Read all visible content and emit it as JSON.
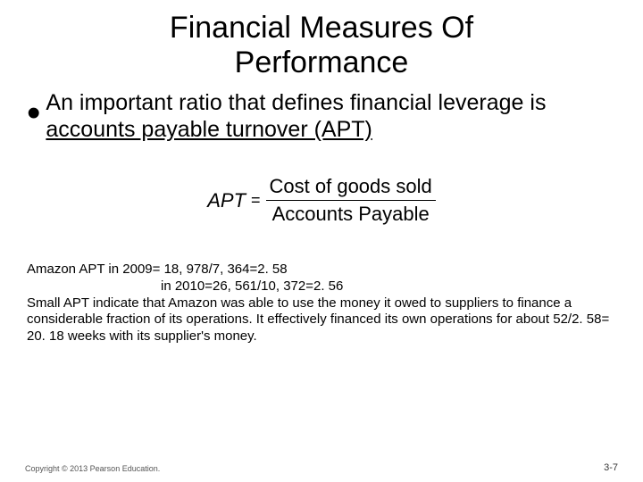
{
  "title_line1": "Financial Measures Of",
  "title_line2": "Performance",
  "bullet_part1": "An important ratio that defines financial leverage is ",
  "bullet_underlined": "accounts payable turnover (APT)",
  "formula": {
    "lhs": "APT",
    "eq": "=",
    "numerator": "Cost of goods sold",
    "denominator": "Accounts Payable"
  },
  "notes": {
    "line1": "Amazon APT in 2009= 18, 978/7, 364=2. 58",
    "line2": "in 2010=26, 561/10, 372=2. 56",
    "line3": "Small APT indicate that Amazon was able to use the money it owed to suppliers to finance a considerable fraction of its operations. It effectively financed its own operations for about 52/2. 58= 20. 18 weeks with its supplier's money."
  },
  "copyright": "Copyright © 2013 Pearson Education.",
  "page_number": "3-7",
  "colors": {
    "background": "#ffffff",
    "text": "#000000",
    "copyright": "#555555"
  }
}
